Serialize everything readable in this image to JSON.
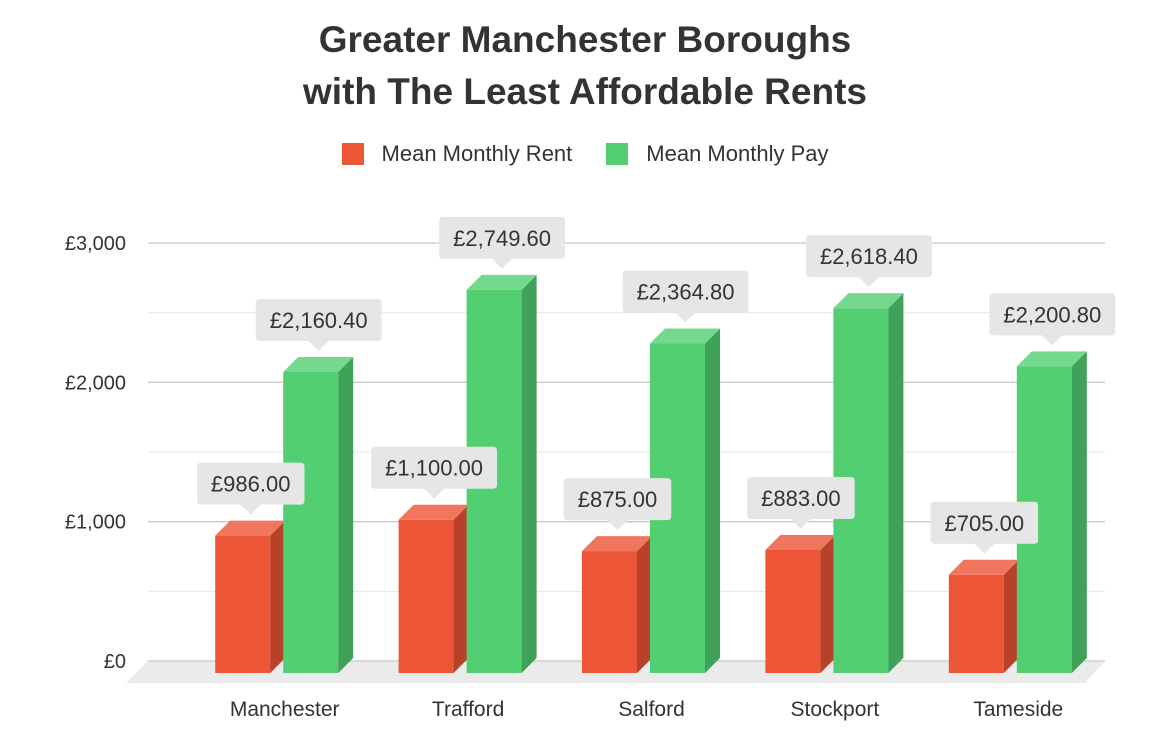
{
  "chart_data": {
    "type": "bar",
    "title_lines": [
      "Greater Manchester Boroughs",
      "with The Least Affordable Rents"
    ],
    "categories": [
      "Manchester",
      "Trafford",
      "Salford",
      "Stockport",
      "Tameside"
    ],
    "series": [
      {
        "name": "Mean Monthly Rent",
        "color": "#ec5535",
        "values": [
          986.0,
          1100.0,
          875.0,
          883.0,
          705.0
        ],
        "labels": [
          "£986.00",
          "£1,100.00",
          "£875.00",
          "£883.00",
          "£705.00"
        ]
      },
      {
        "name": "Mean Monthly Pay",
        "color": "#52cf71",
        "values": [
          2160.4,
          2749.6,
          2364.8,
          2618.4,
          2200.8
        ],
        "labels": [
          "£2,160.40",
          "£2,749.60",
          "£2,364.80",
          "£2,618.40",
          "£2,200.80"
        ]
      }
    ],
    "y_ticks": [
      0,
      1000,
      2000,
      3000
    ],
    "y_tick_labels": [
      "£0",
      "£1,000",
      "£2,000",
      "£3,000"
    ],
    "ylim": [
      0,
      3000
    ],
    "grid": true,
    "legend_position": "top-center"
  }
}
